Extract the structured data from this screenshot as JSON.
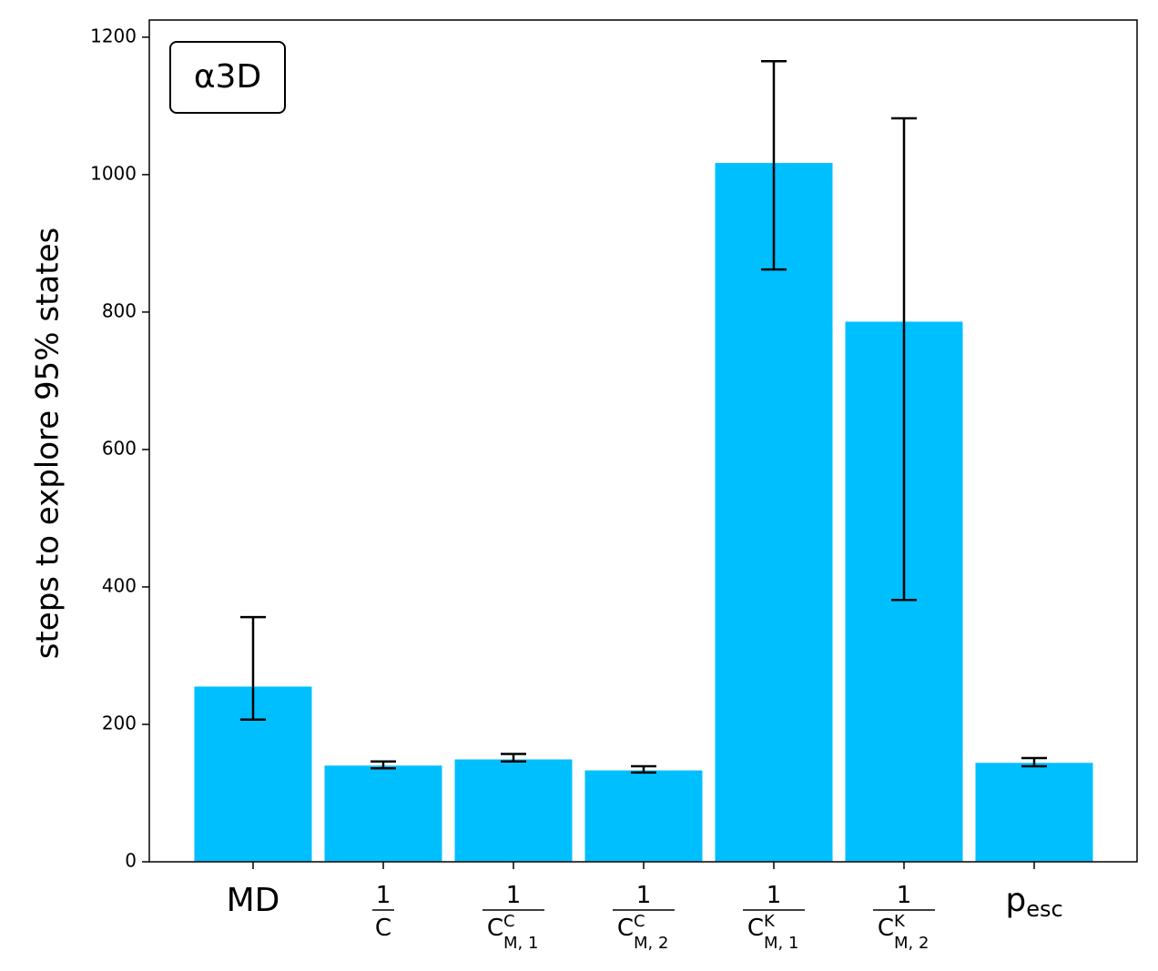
{
  "chart_data": {
    "type": "bar",
    "badge": "α3D",
    "ylabel": "steps to explore 95% states",
    "ylim": [
      0,
      1225
    ],
    "yticks": [
      0,
      200,
      400,
      600,
      800,
      1000,
      1200
    ],
    "grid": false,
    "bar_color": "#00BFFF",
    "categories": [
      {
        "kind": "text",
        "text": "MD"
      },
      {
        "kind": "frac",
        "num": "1",
        "base": "C",
        "sup": "",
        "sub": ""
      },
      {
        "kind": "frac",
        "num": "1",
        "base": "C",
        "sup": "C",
        "sub": "M, 1"
      },
      {
        "kind": "frac",
        "num": "1",
        "base": "C",
        "sup": "C",
        "sub": "M, 2"
      },
      {
        "kind": "frac",
        "num": "1",
        "base": "C",
        "sup": "K",
        "sub": "M, 1"
      },
      {
        "kind": "frac",
        "num": "1",
        "base": "C",
        "sup": "K",
        "sub": "M, 2"
      },
      {
        "kind": "subtext",
        "base": "p",
        "sub": "esc"
      }
    ],
    "values": [
      255,
      140,
      149,
      133,
      1017,
      786,
      144
    ],
    "error_low": [
      207,
      136,
      146,
      130,
      862,
      381,
      139
    ],
    "error_high": [
      356,
      146,
      157,
      139,
      1165,
      1082,
      151
    ]
  }
}
